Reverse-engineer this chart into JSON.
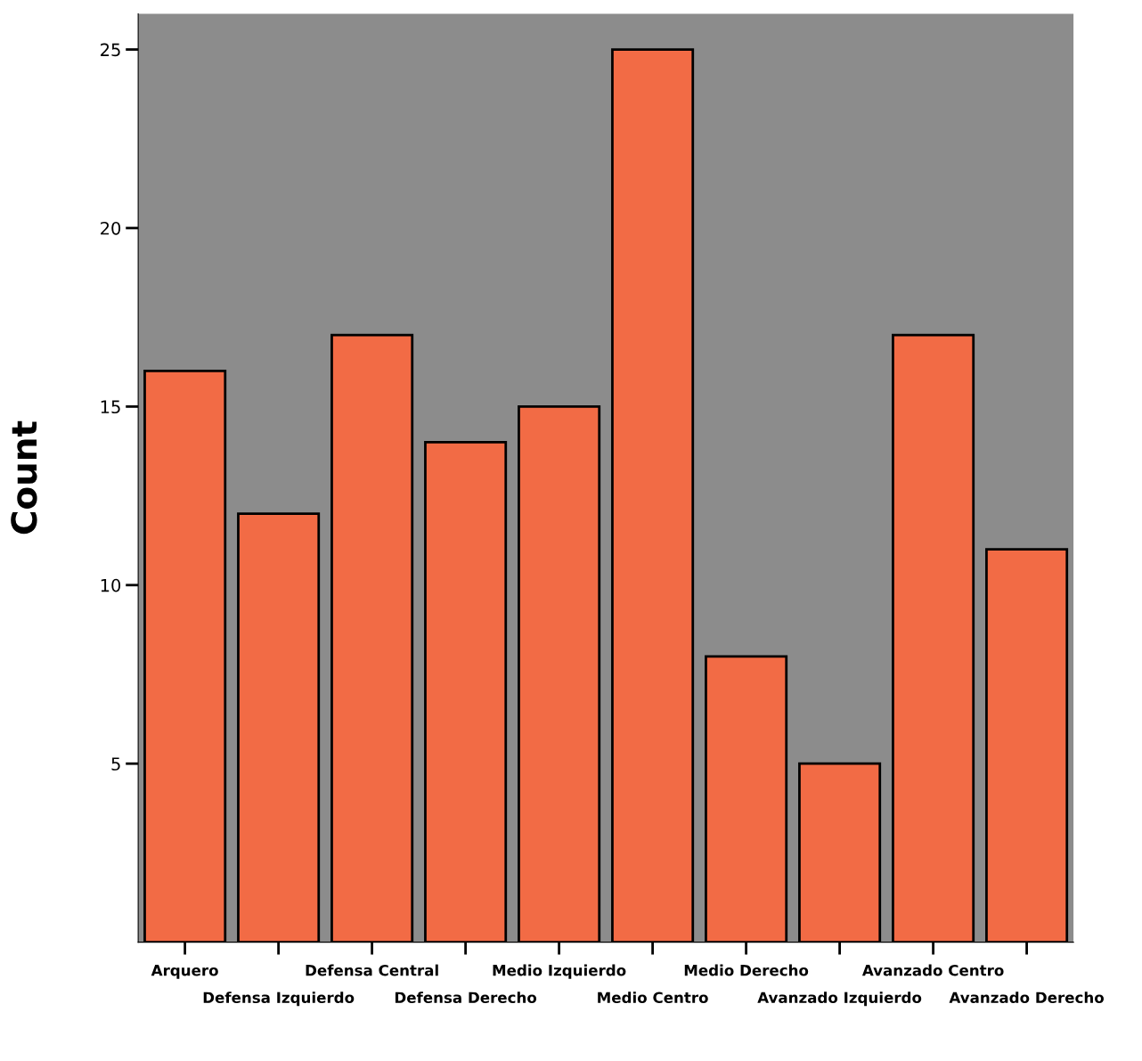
{
  "chart_data": {
    "type": "bar",
    "ylabel": "Count",
    "categories": [
      "Arquero",
      "Defensa Izquierdo",
      "Defensa Central",
      "Defensa Derecho",
      "Medio Izquierdo",
      "Medio Centro",
      "Medio Derecho",
      "Avanzado Izquierdo",
      "Avanzado Centro",
      "Avanzado Derecho"
    ],
    "values": [
      16,
      12,
      17,
      14,
      15,
      25,
      8,
      5,
      17,
      11
    ],
    "color": "#f26b45",
    "ylim": [
      0,
      26
    ],
    "yticks": [
      5,
      10,
      15,
      20,
      25
    ],
    "grid": false
  }
}
